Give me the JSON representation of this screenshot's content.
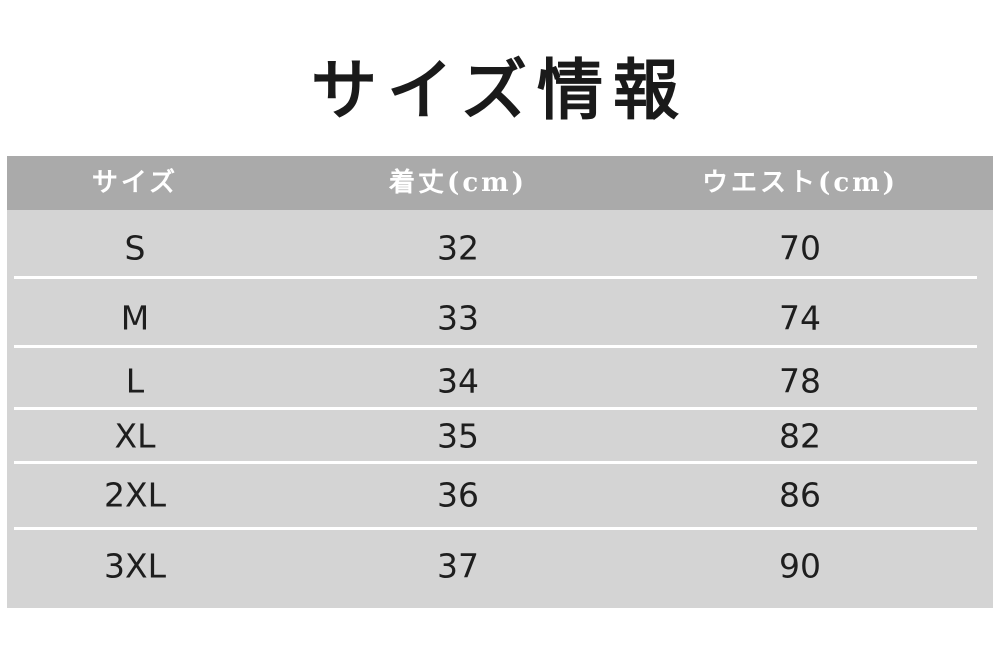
{
  "title": "サイズ情報",
  "table": {
    "headers": [
      "サイズ",
      "着丈(cm)",
      "ウエスト(cm)"
    ],
    "rows": [
      [
        "S",
        "32",
        "70"
      ],
      [
        "M",
        "33",
        "74"
      ],
      [
        "L",
        "34",
        "78"
      ],
      [
        "XL",
        "35",
        "82"
      ],
      [
        "2XL",
        "36",
        "86"
      ],
      [
        "3XL",
        "37",
        "90"
      ]
    ]
  },
  "colors": {
    "header_bg": "#aaaaaa",
    "body_bg": "#d4d4d4",
    "separator": "#ffffff"
  }
}
